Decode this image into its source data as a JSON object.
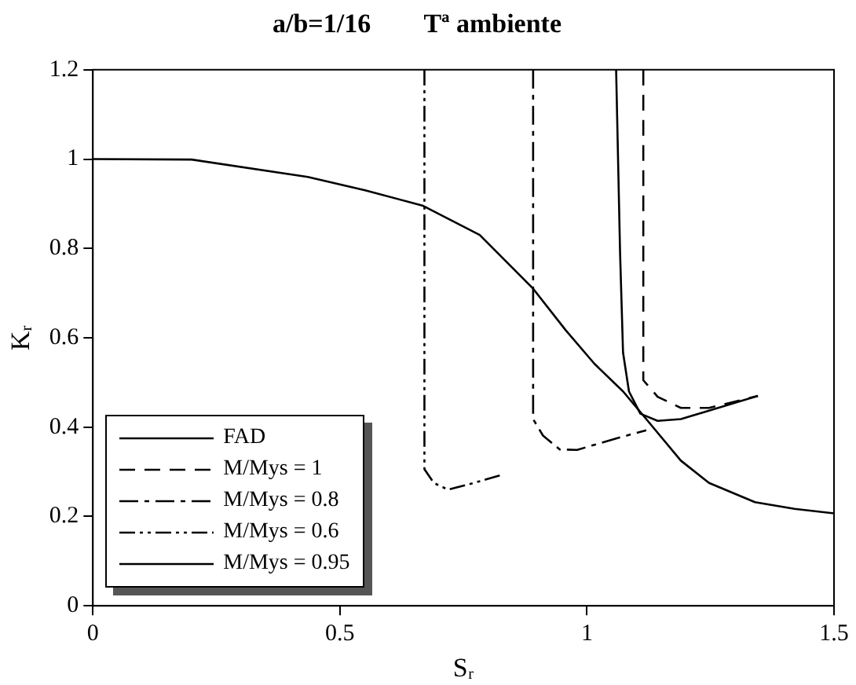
{
  "chart_data": {
    "type": "line",
    "title": "a/b=1/16        Tª ambiente",
    "xlabel": "Sᵣ",
    "ylabel": "Kᵣ",
    "xlim": [
      0,
      1.5
    ],
    "xticks": [
      0,
      0.5,
      1,
      1.5
    ],
    "ylim": [
      0,
      1.2
    ],
    "yticks": [
      0,
      0.2,
      0.4,
      0.6,
      0.8,
      1,
      1.2
    ],
    "grid": false,
    "legend": "bottom left",
    "marker": "none",
    "series": [
      {
        "name": "FAD",
        "color": "#000000",
        "line_style": "solid",
        "x": [
          0,
          0.2,
          0.435,
          0.551,
          0.667,
          0.783,
          0.891,
          0.957,
          1.015,
          1.073,
          1.12,
          1.19,
          1.247,
          1.34,
          1.42,
          1.5
        ],
        "values": [
          1,
          0.999,
          0.96,
          0.93,
          0.896,
          0.83,
          0.71,
          0.617,
          0.542,
          0.48,
          0.418,
          0.325,
          0.275,
          0.232,
          0.217,
          0.207
        ]
      },
      {
        "name": "M/Mys = 1",
        "color": "#000000",
        "line_style": "dashed",
        "x": [
          1.114,
          1.114,
          1.143,
          1.19,
          1.247,
          1.346
        ],
        "values": [
          1.2,
          0.505,
          0.468,
          0.443,
          0.443,
          0.47
        ]
      },
      {
        "name": "M/Mys = 0.8",
        "color": "#000000",
        "line_style": "dashdot",
        "x": [
          0.891,
          0.891,
          0.911,
          0.945,
          0.98,
          1.06,
          1.12
        ],
        "values": [
          1.2,
          0.418,
          0.381,
          0.35,
          0.349,
          0.375,
          0.393
        ]
      },
      {
        "name": "M/Mys = 0.6",
        "color": "#000000",
        "line_style": "dashdotdot",
        "x": [
          0.671,
          0.671,
          0.69,
          0.719,
          0.771,
          0.83
        ],
        "values": [
          1.2,
          0.306,
          0.275,
          0.26,
          0.275,
          0.294
        ]
      },
      {
        "name": "M/Mys = 0.95",
        "color": "#000000",
        "line_style": "solid",
        "x": [
          1.059,
          1.067,
          1.073,
          1.085,
          1.108,
          1.143,
          1.19,
          1.247,
          1.346
        ],
        "values": [
          1.2,
          0.79,
          0.567,
          0.48,
          0.43,
          0.414,
          0.418,
          0.437,
          0.47
        ]
      }
    ]
  }
}
